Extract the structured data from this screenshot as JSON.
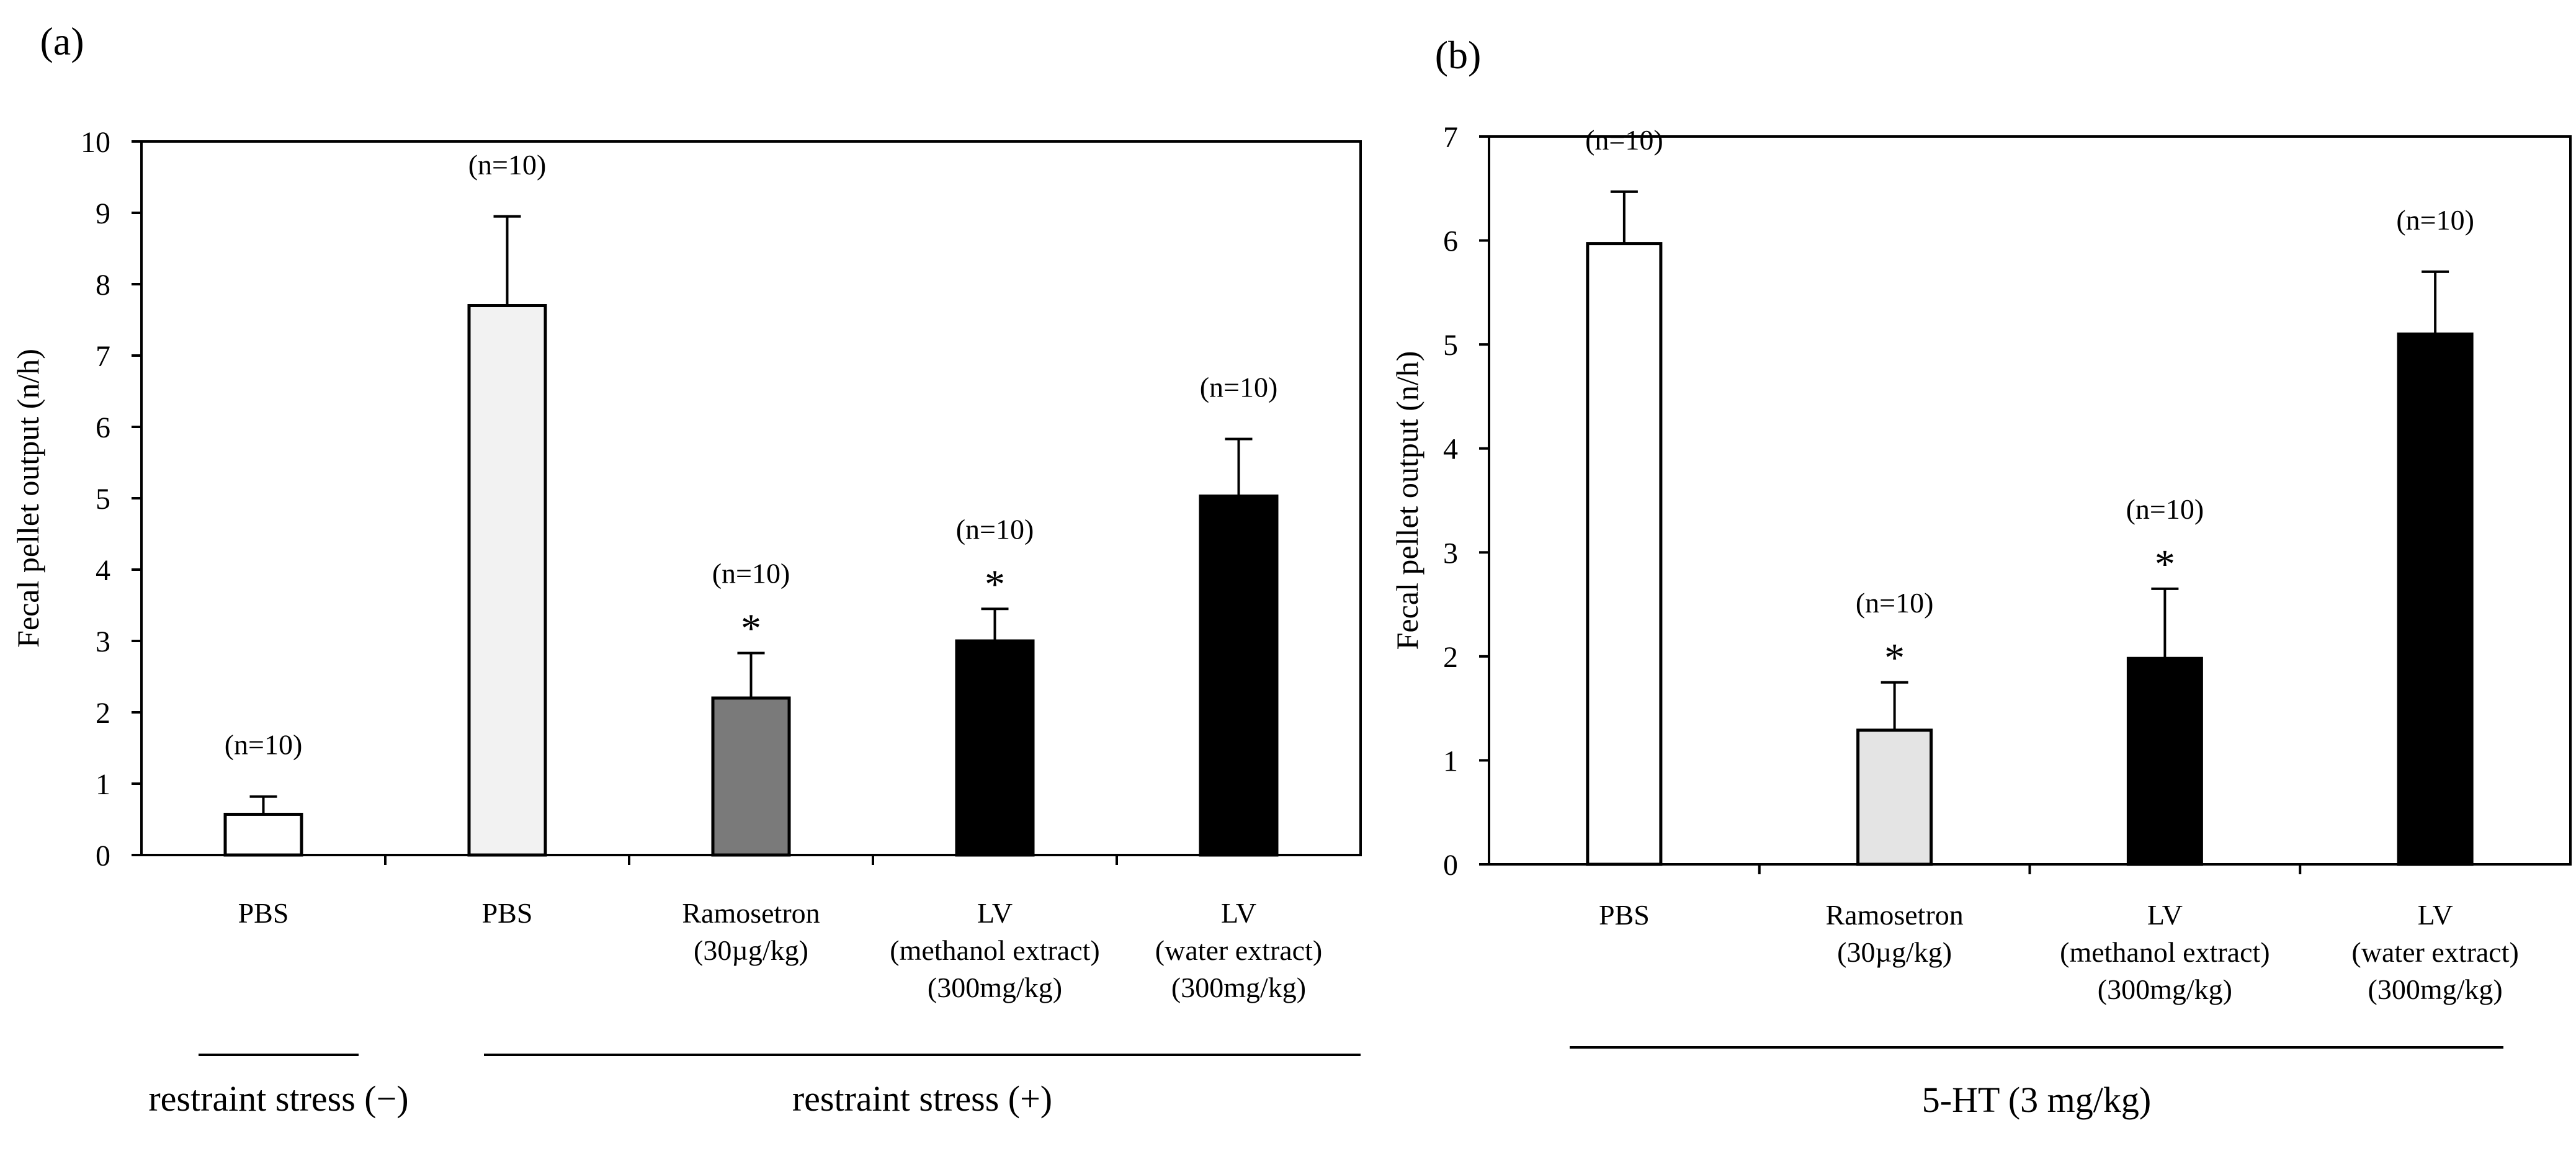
{
  "chart_data": [
    {
      "type": "bar",
      "panel_label": "(a)",
      "ylabel": "Fecal pellet output (n/h)",
      "ylim": [
        0,
        10
      ],
      "yticks": [
        "0",
        "1",
        "2",
        "3",
        "4",
        "5",
        "6",
        "7",
        "8",
        "9",
        "10"
      ],
      "grid": false,
      "categories": [
        [
          "PBS"
        ],
        [
          "PBS"
        ],
        [
          "Ramosetron",
          "(30µg/kg)"
        ],
        [
          "LV",
          "(methanol extract)",
          "(300mg/kg)"
        ],
        [
          "LV",
          "(water extract)",
          "(300mg/kg)"
        ]
      ],
      "values": [
        0.57,
        7.7,
        2.2,
        3.0,
        5.03
      ],
      "errors": [
        0.25,
        1.25,
        0.63,
        0.45,
        0.8
      ],
      "n_labels": [
        "(n=10)",
        "(n=10)",
        "(n=10)",
        "(n=10)",
        "(n=10)"
      ],
      "significance": [
        "",
        "",
        "*",
        "*",
        ""
      ],
      "bar_colors": [
        "#ffffff",
        "#f2f2f2",
        "#7a7a7a",
        "#000000",
        "#000000"
      ],
      "groups": [
        {
          "label": "restraint stress (−)",
          "from": 0,
          "to": 0
        },
        {
          "label": "restraint stress (+)",
          "from": 1,
          "to": 4
        }
      ]
    },
    {
      "type": "bar",
      "panel_label": "(b)",
      "ylabel": "Fecal pellet output (n/h)",
      "ylim": [
        0,
        7
      ],
      "yticks": [
        "0",
        "1",
        "2",
        "3",
        "4",
        "5",
        "6",
        "7"
      ],
      "grid": false,
      "categories": [
        [
          "PBS"
        ],
        [
          "Ramosetron",
          "(30µg/kg)"
        ],
        [
          "LV",
          "(methanol extract)",
          "(300mg/kg)"
        ],
        [
          "LV",
          "(water extract)",
          "(300mg/kg)"
        ]
      ],
      "values": [
        5.97,
        1.29,
        1.98,
        5.1
      ],
      "errors": [
        0.5,
        0.46,
        0.67,
        0.6
      ],
      "n_labels": [
        "(n=10)",
        "(n=10)",
        "(n=10)",
        "(n=10)"
      ],
      "significance": [
        "",
        "*",
        "*",
        ""
      ],
      "bar_colors": [
        "#ffffff",
        "#e4e4e4",
        "#000000",
        "#000000"
      ],
      "groups": [
        {
          "label": "5-HT (3 mg/kg)",
          "from": 0,
          "to": 3
        }
      ]
    }
  ]
}
